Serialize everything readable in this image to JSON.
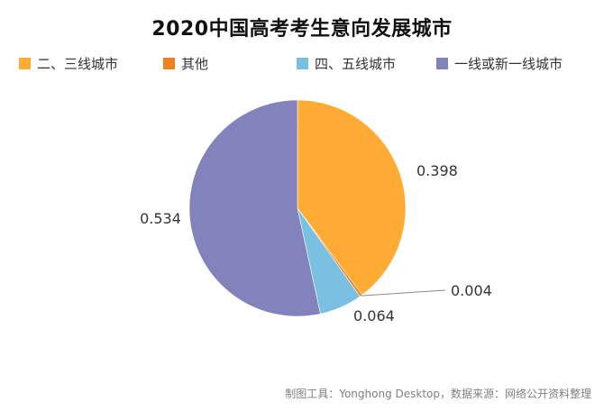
{
  "chart_data": {
    "type": "pie",
    "title": "2020中国高考考生意向发展城市",
    "categories": [
      "二、三线城市",
      "其他",
      "四、五线城市",
      "一线或新一线城市"
    ],
    "values": [
      0.398,
      0.004,
      0.064,
      0.534
    ],
    "labels": [
      "0.398",
      "0.004",
      "0.064",
      "0.534"
    ],
    "colors": [
      "#FFAB34",
      "#F0801E",
      "#7AC0E0",
      "#8282BC"
    ],
    "legend_position": "top",
    "start_angle": "12-o'clock",
    "direction": "clockwise"
  },
  "footer": {
    "source": "制图工具：Yonghong Desktop，数据来源：网络公开资料整理"
  }
}
